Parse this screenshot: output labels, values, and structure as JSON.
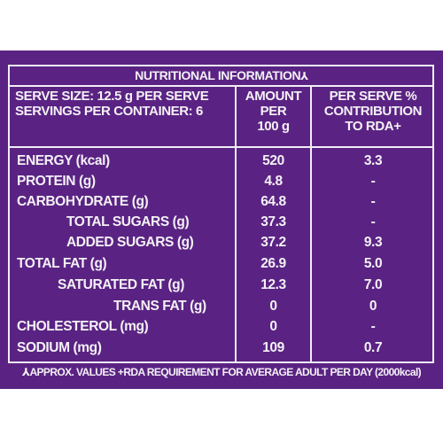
{
  "title": "NUTRITIONAL INFORMATION",
  "title_mark": "⅄",
  "serve_size": "SERVE SIZE: 12.5 g PER SERVE",
  "servings": "SERVINGS PER CONTAINER: 6",
  "col_amount": [
    "AMOUNT",
    "PER",
    "100 g"
  ],
  "col_contrib": [
    "PER SERVE %",
    "CONTRIBUTION",
    "TO RDA+"
  ],
  "rows": [
    {
      "label": "ENERGY (kcal)",
      "amount": "520",
      "rda": "3.3"
    },
    {
      "label": "PROTEIN (g)",
      "amount": "4.8",
      "rda": "-"
    },
    {
      "label": "CARBOHYDRATE (g)",
      "amount": "64.8",
      "rda": "-"
    },
    {
      "label": "TOTAL SUGARS (g)",
      "amount": "37.3",
      "rda": "-"
    },
    {
      "label": "ADDED SUGARS (g)",
      "amount": "37.2",
      "rda": "9.3"
    },
    {
      "label": "TOTAL FAT (g)",
      "amount": "26.9",
      "rda": "5.0"
    },
    {
      "label": "SATURATED FAT (g)",
      "amount": "12.3",
      "rda": "7.0"
    },
    {
      "label": "TRANS FAT (g)",
      "amount": "0",
      "rda": "0"
    },
    {
      "label": "CHOLESTEROL (mg)",
      "amount": "0",
      "rda": "-"
    },
    {
      "label": "SODIUM (mg)",
      "amount": "109",
      "rda": "0.7"
    }
  ],
  "footnote": "⅄APPROX. VALUES +RDA REQUIREMENT FOR AVERAGE ADULT PER DAY (2000kcal)",
  "colors": {
    "panel": "#5a2383",
    "text": "#f4f1f6"
  }
}
